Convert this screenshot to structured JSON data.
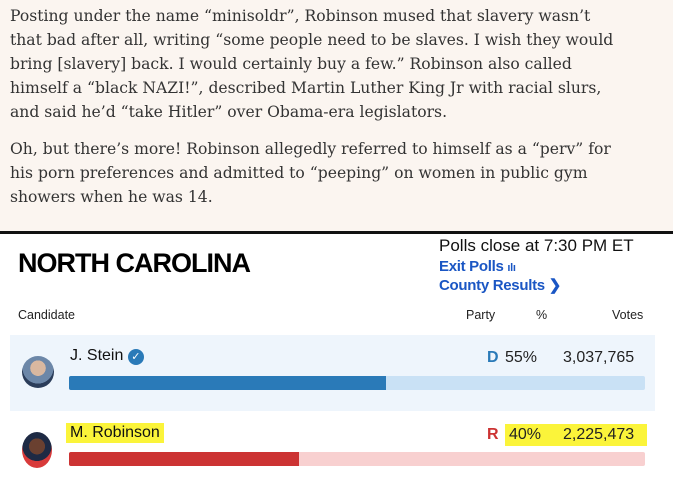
{
  "article": {
    "paragraphs": [
      "Posting under the name “minisoldr”, Robinson mused that slavery wasn’t\nthat bad after all, writing “some people need to be slaves. I wish they would\nbring [slavery] back. I would certainly buy a few.” Robinson also called\nhimself a “black NAZI!”, described Martin Luther King Jr with racial slurs,\nand said he’d “take Hitler” over Obama-era legislators.",
      "Oh, but there’s more! Robinson allegedly referred to himself as a “perv” for\nhis porn preferences and admitted to “peeping” on women in public gym\nshowers when he was 14."
    ]
  },
  "results": {
    "state": "NORTH CAROLINA",
    "polls_close": "Polls close at 7:30 PM ET",
    "exit_polls": "Exit Polls",
    "county_results": "County Results",
    "headers": {
      "candidate": "Candidate",
      "party": "Party",
      "pct": "%",
      "votes": "Votes"
    },
    "candidates": [
      {
        "name": "J. Stein",
        "party": "D",
        "pct": "55%",
        "votes": "3,037,765",
        "share": 55,
        "color": "#2a7ab8",
        "track": "#c9e1f5"
      },
      {
        "name": "M. Robinson",
        "party": "R",
        "pct": "40%",
        "votes": "2,225,473",
        "share": 40,
        "color": "#cc3333",
        "track": "#f8d0d0"
      }
    ]
  }
}
